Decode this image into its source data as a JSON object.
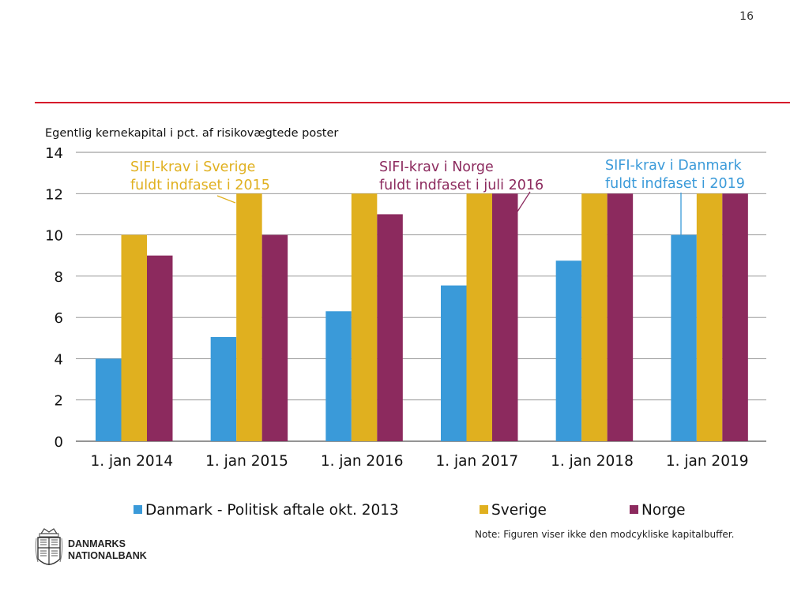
{
  "page_number": "16",
  "footer": {
    "logo_line1": "DANMARKS",
    "logo_line2": "NATIONALBANK",
    "note": "Note: Figuren viser ikke den modcykliske kapitalbuffer."
  },
  "colors": {
    "danmark": "#3a9ad9",
    "sverige": "#e0b01f",
    "norge": "#8c2a5e",
    "accent_red": "#d6182b",
    "grid": "#8a8a8a"
  },
  "chart_data": {
    "type": "bar",
    "ylabel": "Egentlig kernekapital i pct. af risikovægtede poster",
    "ylim": [
      0,
      14
    ],
    "yticks": [
      0,
      2,
      4,
      6,
      8,
      10,
      12,
      14
    ],
    "categories": [
      "1. jan 2014",
      "1. jan 2015",
      "1. jan 2016",
      "1. jan 2017",
      "1. jan 2018",
      "1. jan 2019"
    ],
    "series": [
      {
        "name": "Danmark - Politisk aftale okt. 2013",
        "key": "danmark",
        "values": [
          4.0,
          5.05,
          6.3,
          7.55,
          8.75,
          10.0
        ]
      },
      {
        "name": "Sverige",
        "key": "sverige",
        "values": [
          10.0,
          12.0,
          12.0,
          12.0,
          12.0,
          12.0
        ]
      },
      {
        "name": "Norge",
        "key": "norge",
        "values": [
          9.0,
          10.0,
          11.0,
          12.0,
          12.0,
          12.0
        ]
      }
    ],
    "annotations": [
      {
        "line1": "SIFI-krav i Sverige",
        "line2": "fuldt indfaset i 2015",
        "series": "sverige",
        "category": 1
      },
      {
        "line1": "SIFI-krav i Norge",
        "line2": "fuldt indfaset i juli 2016",
        "series": "norge",
        "category": 3
      },
      {
        "line1": "SIFI-krav i Danmark",
        "line2": "fuldt indfaset i 2019",
        "series": "danmark",
        "category": 5
      }
    ]
  }
}
